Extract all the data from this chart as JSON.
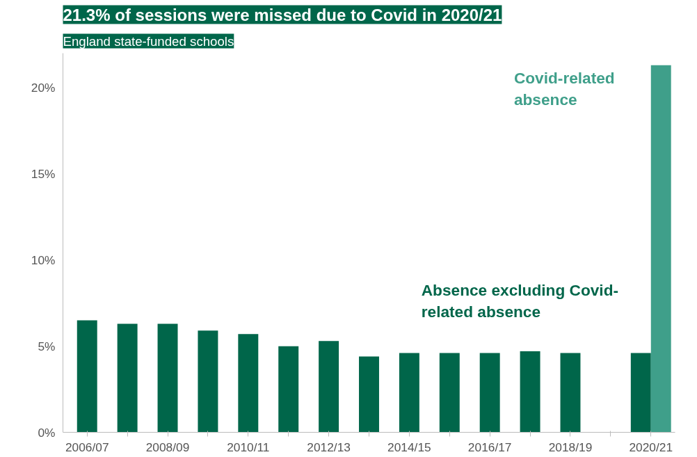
{
  "chart_data": {
    "type": "bar",
    "title": "21.3% of sessions were missed due to Covid in 2020/21",
    "subtitle": "England state-funded schools",
    "categories": [
      "2006/07",
      null,
      "2008/09",
      null,
      "2010/11",
      null,
      "2012/13",
      null,
      "2014/15",
      null,
      "2016/17",
      null,
      "2018/19",
      null,
      "2020/21"
    ],
    "series": [
      {
        "name": "Absence excluding Covid-related absence",
        "color": "#00664a",
        "values": [
          6.5,
          6.3,
          6.3,
          5.9,
          5.7,
          5.0,
          5.3,
          4.4,
          4.6,
          4.6,
          4.6,
          4.7,
          4.6,
          null,
          4.6
        ]
      },
      {
        "name": "Covid-related absence",
        "color": "#3f9f8a",
        "values": [
          null,
          null,
          null,
          null,
          null,
          null,
          null,
          null,
          null,
          null,
          null,
          null,
          null,
          null,
          21.3
        ]
      }
    ],
    "ylim": [
      0,
      22
    ],
    "yticks": [
      {
        "value": 0,
        "label": "0%"
      },
      {
        "value": 5,
        "label": "5%"
      },
      {
        "value": 10,
        "label": "10%"
      },
      {
        "value": 15,
        "label": "15%"
      },
      {
        "value": 20,
        "label": "20%"
      }
    ],
    "grid": false
  }
}
